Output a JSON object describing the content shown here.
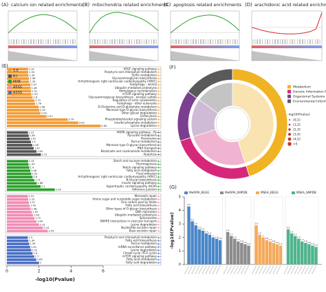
{
  "chart_data": [
    {
      "type": "line",
      "label": "(A)",
      "title": "calcium ion related enrichments",
      "color": "#2ca02c",
      "values": [
        0,
        0.12,
        0.22,
        0.3,
        0.36,
        0.4,
        0.42,
        0.41,
        0.38,
        0.32,
        0.25,
        0.15,
        0.05
      ],
      "ylim": [
        -0.1,
        0.5
      ]
    },
    {
      "type": "line",
      "label": "(B)",
      "title": "mitochondria related enrichments",
      "color": "#2ca02c",
      "values": [
        0,
        0.2,
        0.34,
        0.42,
        0.46,
        0.47,
        0.45,
        0.42,
        0.38,
        0.33,
        0.26,
        0.16,
        0.05
      ],
      "ylim": [
        -0.1,
        0.5
      ]
    },
    {
      "type": "line",
      "label": "(C)",
      "title": "apoptosis related enrichments",
      "color": "#2ca02c",
      "values": [
        0,
        0.1,
        0.2,
        0.28,
        0.34,
        0.38,
        0.4,
        0.41,
        0.39,
        0.34,
        0.27,
        0.17,
        0.05
      ],
      "ylim": [
        -0.1,
        0.5
      ]
    },
    {
      "type": "line",
      "label": "(D)",
      "title": "arachidonic acid related enrichments",
      "color": "#d62728",
      "values": [
        0,
        -0.05,
        -0.1,
        -0.14,
        -0.17,
        -0.19,
        -0.2,
        -0.2,
        -0.19,
        -0.17,
        -0.13,
        -0.05,
        0.45
      ],
      "ylim": [
        -0.3,
        0.5
      ]
    },
    {
      "type": "barh",
      "label": "(E)",
      "xlabel": "-log10(Pvalue)",
      "xlim": [
        0,
        6
      ],
      "xticks": [
        0,
        2,
        4,
        6
      ],
      "series": [
        {
          "name": "S.E",
          "color": "#f39c34",
          "categories": [
            "VEGF signaling pathway",
            "Porphyrin and chlorophyll metabolism",
            "Sulfur metabolism",
            "Glycosaminoglycan biosynthesis",
            "Arrhythmogenic right ventricular cardiomyopathy (ARVC)",
            "Autophagy - animal",
            "Ubiquitin mediated proteolysis",
            "Homologous recombination",
            "mTOR signaling pathway",
            "Glycosaminoglycan biosynthesis - keratan sulfate",
            "Regulation of actin cytoskeleton",
            "Autophagy - other eukaryote",
            "D-Glutamine and D-glutamate metabolism",
            "Mannose type O-glycan biosynthesis",
            "Other glycan degradation",
            "Endocytosis",
            "Phosphatidylinositol signaling system",
            "Inositol phosphate metabolism",
            "Lysine degradation"
          ],
          "values": [
            1.32,
            1.33,
            1.34,
            1.38,
            1.39,
            1.47,
            1.48,
            1.51,
            1.53,
            1.6,
            1.72,
            1.76,
            1.98,
            2.02,
            2.09,
            2.47,
            3.79,
            4.45,
            5.84
          ]
        },
        {
          "name": "R.I",
          "color": "#555555",
          "categories": [
            "MAPK signaling pathway - fly",
            "Pyruvate metabolism",
            "Peroxisome",
            "Purine metabolism",
            "Mannose type O-glycan biosynthesis",
            "RNA transport",
            "Nicotinate and nicotinamide metabolism",
            "Apoptosis"
          ],
          "values": [
            1.31,
            1.36,
            1.42,
            1.5,
            1.58,
            1.67,
            1.84,
            2.12
          ]
        },
        {
          "name": "MXE",
          "color": "#2ca02c",
          "categories": [
            "Starch and sucrose metabolism",
            "Thermogenesis",
            "Notch signaling pathway",
            "Fatty acid metabolism",
            "Focal adhesion",
            "Arrhythmogenic right ventricular cardiomyopathy (ARVC)",
            "N-Glycan biosynthesis",
            "Insulin signaling pathway",
            "Hypertrophic cardiomyopathy (HCM)",
            "Adherens junction"
          ],
          "values": [
            1.32,
            1.35,
            1.4,
            1.46,
            1.52,
            1.6,
            1.71,
            1.86,
            2.1,
            2.99
          ]
        },
        {
          "name": "A5SS",
          "color": "#f28cb4",
          "categories": [
            "Mismatch repair",
            "Amino sugar and nucleotide sugar metabolism",
            "One carbon pool by folate",
            "Fatty acid biosynthesis",
            "Other types of O-glycan biosynthesis",
            "DNA replication",
            "Ubiquitin mediated proteolysis",
            "Spliceosome",
            "SNARE interactions in vesicular transport",
            "Lysine degradation",
            "Nucleotide excision repair",
            "Base excision repair"
          ],
          "values": [
            1.31,
            1.33,
            1.37,
            1.42,
            1.48,
            1.55,
            1.63,
            1.72,
            1.84,
            2.01,
            2.24,
            2.55
          ]
        },
        {
          "name": "A3SS",
          "color": "#4a6fc4",
          "categories": [
            "Porphyrin and chlorophyll metabolism",
            "Fatty acid biosynthesis",
            "Purine metabolism",
            "mRNA surveillance pathway",
            "Lysine degradation",
            "Citrate cycle (TCA cycle)",
            "mTOR signaling pathway",
            "Fatty acid metabolism",
            "Fatty acid degradation"
          ],
          "values": [
            1.3,
            1.34,
            1.39,
            1.45,
            1.52,
            1.6,
            1.7,
            1.83,
            2.0
          ]
        }
      ]
    },
    {
      "type": "donut",
      "label": "(F)",
      "legend_title": "-log10(Pvalue)",
      "pvalue_classes": [
        "(0,1]",
        "(1,2]",
        "(2,3]",
        "(3,4]",
        "(4,5]",
        ">5"
      ],
      "series": [
        {
          "name": "Metabolism",
          "color": "#f0b323",
          "value": 45
        },
        {
          "name": "Genetic Information Processing",
          "color": "#d6287a",
          "value": 25
        },
        {
          "name": "Organismal Systems",
          "color": "#7b3f8f",
          "value": 15
        },
        {
          "name": "Environmental Information Processing",
          "color": "#5a5a5a",
          "value": 15
        }
      ]
    },
    {
      "type": "bar",
      "label": "(G)",
      "ylabel": "-log10(Pvalue)",
      "ylim": [
        0,
        5
      ],
      "yticks": [
        0,
        1,
        2,
        3,
        4,
        5
      ],
      "series": [
        {
          "name": "MeRIPA_KEGG",
          "color": "#4a86c8",
          "values": [
            4.3,
            3.2,
            2.9,
            2.6,
            2.5,
            2.3,
            2.2,
            2.0,
            1.9,
            1.8
          ]
        },
        {
          "name": "MeRIPA_SMPDB",
          "color": "#8c8c8c",
          "values": [
            2.4,
            2.1,
            1.9,
            1.7,
            1.6,
            1.5,
            1.4
          ]
        },
        {
          "name": "MSEA_KEGG",
          "color": "#f4a95a",
          "values": [
            2.9,
            2.2,
            2.0,
            1.8,
            1.7,
            1.6,
            1.5,
            1.4
          ]
        },
        {
          "name": "MSEA_SMPDB",
          "color": "#4fb38c",
          "values": [
            2.6,
            2.3,
            2.1,
            1.9,
            1.7,
            1.6,
            1.5,
            1.4,
            1.3
          ]
        }
      ]
    }
  ]
}
